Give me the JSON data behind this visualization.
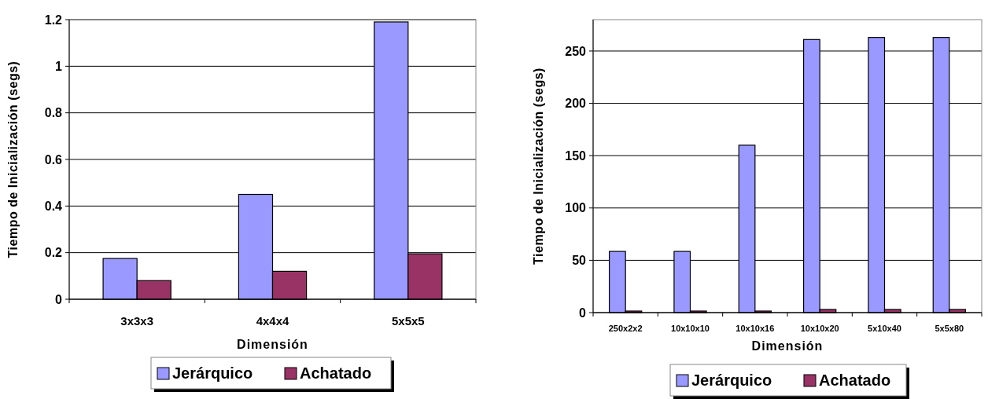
{
  "chart_data": [
    {
      "type": "bar",
      "xlabel": "Dimensión",
      "ylabel": "Tiempo de Inicialización (segs)",
      "categories": [
        "3x3x3",
        "4x4x4",
        "5x5x5"
      ],
      "series": [
        {
          "name": "Jerárquico",
          "color": "#9999ff",
          "values": [
            0.175,
            0.45,
            1.19
          ]
        },
        {
          "name": "Achatado",
          "color": "#993366",
          "values": [
            0.08,
            0.12,
            0.195
          ]
        }
      ],
      "ylim": [
        0,
        1.2
      ],
      "yticks": [
        0,
        0.2,
        0.4,
        0.6,
        0.8,
        1,
        1.2
      ],
      "grid": "y",
      "legend": "bottom"
    },
    {
      "type": "bar",
      "xlabel": "Dimensión",
      "ylabel": "Tiempo de Inicialización (segs)",
      "categories": [
        "250x2x2",
        "10x10x10",
        "10x10x16",
        "10x10x20",
        "5x10x40",
        "5x5x80"
      ],
      "series": [
        {
          "name": "Jerárquico",
          "color": "#9999ff",
          "values": [
            58.5,
            58.5,
            160,
            261,
            263,
            263
          ]
        },
        {
          "name": "Achatado",
          "color": "#993366",
          "values": [
            1.5,
            1.5,
            1.5,
            3,
            3,
            3
          ]
        }
      ],
      "ylim": [
        0,
        280
      ],
      "yticks": [
        0,
        50,
        100,
        150,
        200,
        250
      ],
      "grid": "y",
      "legend": "bottom"
    }
  ]
}
